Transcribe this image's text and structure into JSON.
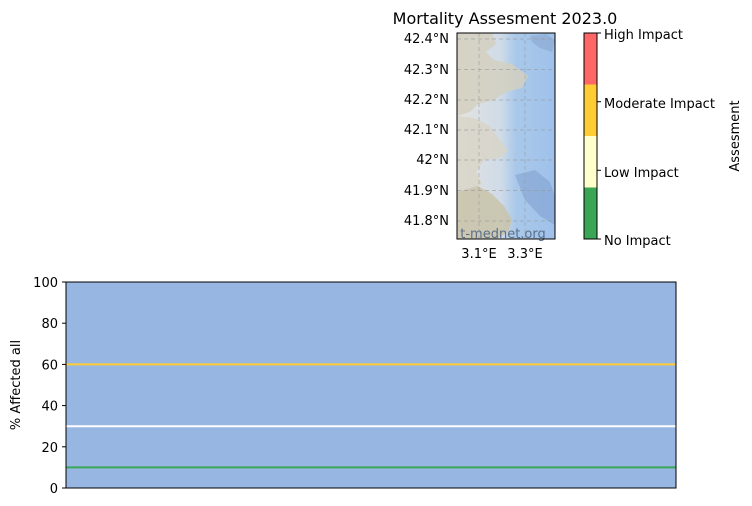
{
  "title": "Mortality Assesment 2023.0",
  "map": {
    "lat_ticks": [
      "42.4°N",
      "42.3°N",
      "42.2°N",
      "42.1°N",
      "42°N",
      "41.9°N",
      "41.8°N"
    ],
    "lon_ticks": [
      "3.1°E",
      "3.3°E"
    ],
    "watermark": "t-mednet.org"
  },
  "colorbar": {
    "label": "Assesment",
    "levels": [
      "No Impact",
      "Low Impact",
      "Moderate Impact",
      "High Impact"
    ],
    "colors": [
      "#3aa655",
      "#ffffcc",
      "#ffcc33",
      "#ff6666"
    ]
  },
  "chart_data": {
    "type": "line",
    "title": "",
    "xlabel": "",
    "ylabel": "% Affected all",
    "ylim": [
      0,
      100
    ],
    "yticks": [
      0,
      20,
      40,
      60,
      80,
      100
    ],
    "background_color": "#98b6e2",
    "series": [
      {
        "values": [
          10,
          10
        ],
        "color": "#3aa655"
      },
      {
        "values": [
          30,
          30
        ],
        "color": "#ffffff"
      },
      {
        "values": [
          60,
          60
        ],
        "color": "#ffcc33"
      }
    ]
  }
}
